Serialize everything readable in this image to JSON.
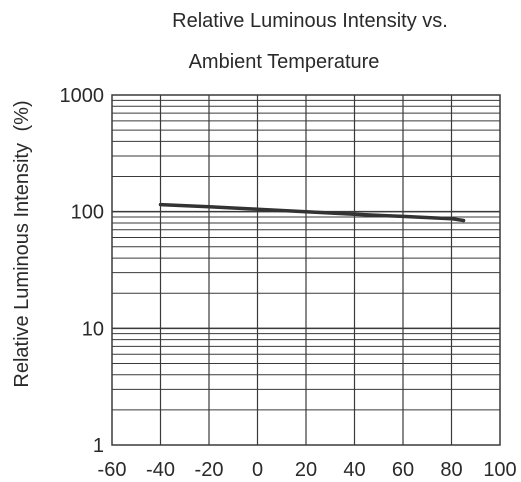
{
  "chart_data": {
    "type": "line",
    "title": [
      "Relative Luminous Intensity vs.",
      "Ambient Temperature"
    ],
    "xlabel": "",
    "ylabel": "Relative Luminous Intensity",
    "ylabel_unit": "(%)",
    "xlim": [
      -60,
      100
    ],
    "ylim": [
      1,
      1000
    ],
    "yscale": "log",
    "grid": true,
    "x_ticks": [
      "-60",
      "-40",
      "-20",
      "0",
      "20",
      "40",
      "60",
      "80",
      "100"
    ],
    "y_ticks": [
      "1",
      "10",
      "100",
      "1000"
    ],
    "series": [
      {
        "x": [
          -40,
          -20,
          0,
          20,
          40,
          60,
          80,
          85
        ],
        "y": [
          115,
          110,
          105,
          100,
          95,
          91,
          87,
          84
        ]
      }
    ],
    "colors": {
      "line": "#333333",
      "grid": "#3a3a3a",
      "text": "#2a2a2a"
    }
  }
}
